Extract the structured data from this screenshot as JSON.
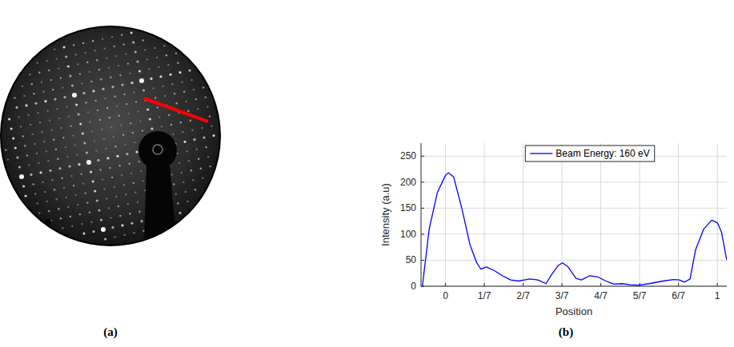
{
  "image": {
    "panel_label": "(a)"
  },
  "chart_data": {
    "type": "line",
    "panel_label": "(b)",
    "x_label": "Position",
    "y_label": "Intensity (a.u)",
    "x": [
      -0.085,
      -0.06,
      -0.03,
      0.0,
      0.01,
      0.03,
      0.06,
      0.09,
      0.115,
      0.13,
      0.15,
      0.18,
      0.21,
      0.24,
      0.27,
      0.29,
      0.31,
      0.34,
      0.37,
      0.39,
      0.415,
      0.43,
      0.45,
      0.48,
      0.5,
      0.53,
      0.56,
      0.59,
      0.62,
      0.65,
      0.68,
      0.71,
      0.75,
      0.8,
      0.84,
      0.86,
      0.88,
      0.9,
      0.92,
      0.95,
      0.98,
      1.0,
      1.015,
      1.035
    ],
    "series": [
      {
        "name": "Beam Energy: 160 eV",
        "color": "#0000ff",
        "values": [
          0,
          110,
          180,
          213,
          218,
          210,
          150,
          80,
          45,
          33,
          37,
          30,
          20,
          12,
          10,
          12,
          14,
          12,
          5,
          22,
          40,
          45,
          38,
          15,
          12,
          20,
          18,
          10,
          4,
          5,
          3,
          2,
          5,
          10,
          13,
          12,
          8,
          14,
          70,
          110,
          127,
          122,
          105,
          50
        ]
      }
    ],
    "xlim": [
      -0.09,
      1.035
    ],
    "xticks": [
      0,
      {
        "value": 0.142857,
        "label": "1/7"
      },
      {
        "value": 0.285714,
        "label": "2/7"
      },
      {
        "value": 0.428571,
        "label": "3/7"
      },
      {
        "value": 0.571429,
        "label": "4/7"
      },
      {
        "value": 0.714286,
        "label": "5/7"
      },
      {
        "value": 0.857143,
        "label": "6/7"
      },
      1
    ],
    "ylim": [
      0,
      275
    ],
    "yticks": [
      0,
      50,
      100,
      150,
      200,
      250
    ],
    "grid": true,
    "legend": "top"
  }
}
